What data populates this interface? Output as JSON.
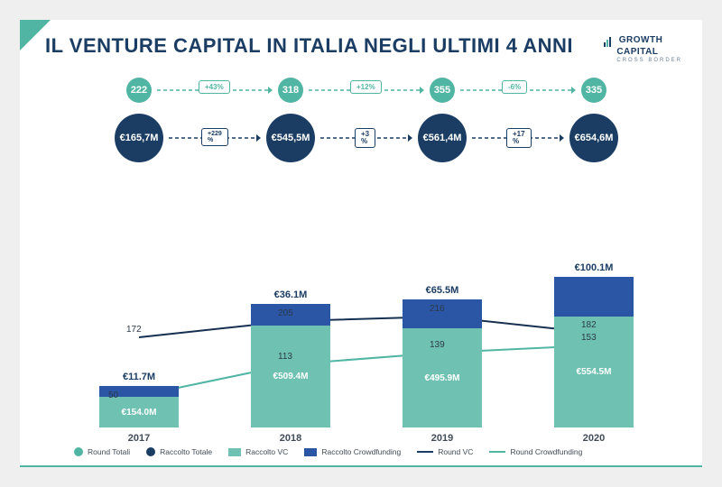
{
  "title": "IL VENTURE CAPITAL IN ITALIA NEGLI ULTIMI 4 ANNI",
  "logo": {
    "line1": "GROWTH",
    "line2": "CAPITAL",
    "sub": "CROSS BORDER"
  },
  "colors": {
    "teal": "#51b5a4",
    "teal_light": "#6fc2b1",
    "navy": "#1b3d63",
    "navy_dark": "#163051",
    "blue_bar": "#2b55a5",
    "text": "#1b3d63",
    "bg": "#ffffff"
  },
  "years": [
    "2017",
    "2018",
    "2019",
    "2020"
  ],
  "round_totali": {
    "values": [
      "222",
      "318",
      "355",
      "335"
    ],
    "pct": [
      "+43%",
      "+12%",
      "-6%"
    ]
  },
  "raccolto_totale": {
    "values": [
      "€165,7M",
      "€545,5M",
      "€561,4M",
      "€654,6M"
    ],
    "pct": [
      "+229%",
      "+3%",
      "+17%"
    ]
  },
  "bars": {
    "vc": {
      "labels": [
        "€154.0M",
        "€509.4M",
        "€495.9M",
        "€554.5M"
      ],
      "heights": [
        34,
        113,
        110,
        123
      ]
    },
    "crowd": {
      "labels": [
        "€11.7M",
        "€36.1M",
        "€65.5M",
        "€100.1M"
      ],
      "heights": [
        12,
        24,
        32,
        44
      ],
      "top_label_color": "#1b3d63"
    }
  },
  "line_round_vc": {
    "vals": [
      172,
      205,
      216,
      182
    ],
    "y": [
      118,
      100,
      95,
      113
    ]
  },
  "line_round_crowd": {
    "vals": [
      50,
      113,
      139,
      153
    ],
    "y": [
      183,
      148,
      135,
      127
    ]
  },
  "legend": [
    {
      "type": "circle",
      "color": "#51b5a4",
      "label": "Round Totali"
    },
    {
      "type": "circle",
      "color": "#1b3d63",
      "label": "Raccolto Totale"
    },
    {
      "type": "rect",
      "color": "#6fc2b1",
      "label": "Raccolto VC"
    },
    {
      "type": "rect",
      "color": "#2b55a5",
      "label": "Raccolto Crowdfunding"
    },
    {
      "type": "line",
      "color": "#1b3d63",
      "label": "Round VC"
    },
    {
      "type": "line",
      "color": "#51b5a4",
      "label": "Round Crowdfunding"
    }
  ]
}
